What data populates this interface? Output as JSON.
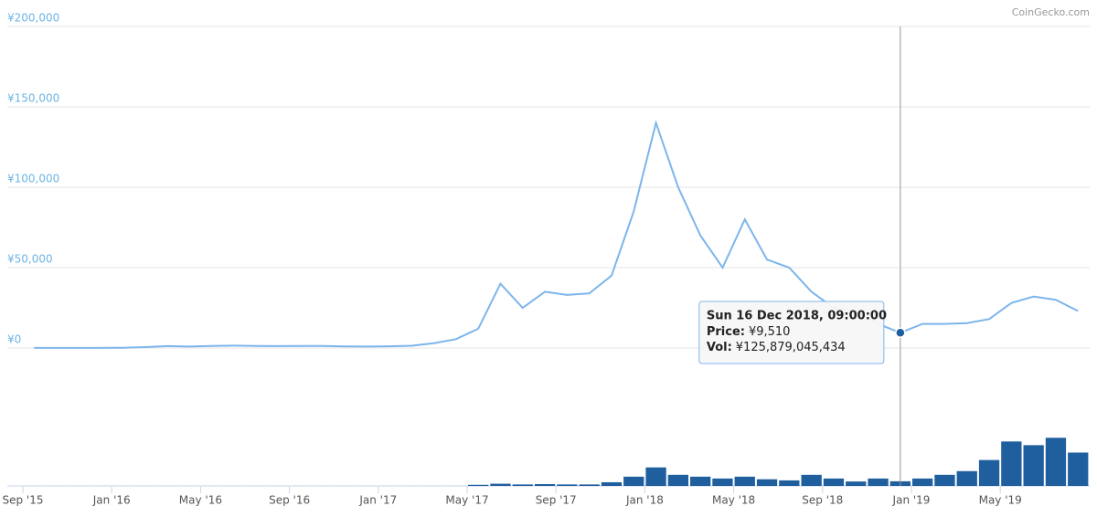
{
  "chart_data": {
    "type": "line",
    "credit": "CoinGecko.com",
    "x": [
      "2015-09",
      "2015-10",
      "2015-11",
      "2015-12",
      "2016-01",
      "2016-02",
      "2016-03",
      "2016-04",
      "2016-05",
      "2016-06",
      "2016-07",
      "2016-08",
      "2016-09",
      "2016-10",
      "2016-11",
      "2016-12",
      "2017-01",
      "2017-02",
      "2017-03",
      "2017-04",
      "2017-05",
      "2017-06",
      "2017-07",
      "2017-08",
      "2017-09",
      "2017-10",
      "2017-11",
      "2017-12",
      "2018-01",
      "2018-02",
      "2018-03",
      "2018-04",
      "2018-05",
      "2018-06",
      "2018-07",
      "2018-08",
      "2018-09",
      "2018-10",
      "2018-11",
      "2018-12",
      "2019-01",
      "2019-02",
      "2019-03",
      "2019-04",
      "2019-05",
      "2019-06",
      "2019-07",
      "2019-08"
    ],
    "series": [
      {
        "color": "#7cb5ec",
        "values": [
          100,
          80,
          100,
          100,
          120,
          600,
          1200,
          900,
          1300,
          1500,
          1300,
          1200,
          1300,
          1300,
          1000,
          900,
          1100,
          1400,
          3000,
          5500,
          12000,
          40000,
          25000,
          35000,
          33000,
          34000,
          45000,
          85000,
          140000,
          100000,
          70000,
          50000,
          80000,
          55000,
          50000,
          35000,
          25000,
          23000,
          15000,
          9510,
          15000,
          15000,
          15500,
          18000,
          28000,
          32000,
          30000,
          23000
        ]
      },
      {
        "color": "#1f5f9e",
        "axis": "y2",
        "values": [
          1000000000.0,
          1000000000.0,
          1000000000.0,
          1000000000.0,
          1000000000.0,
          1000000000.0,
          1000000000.0,
          1000000000.0,
          1000000000.0,
          1000000000.0,
          1000000000.0,
          1000000000.0,
          1000000000.0,
          1000000000.0,
          1000000000.0,
          1000000000.0,
          1000000000.0,
          1000000000.0,
          1000000000.0,
          1000000000.0,
          30000000000.0,
          60000000000.0,
          40000000000.0,
          50000000000.0,
          40000000000.0,
          40000000000.0,
          100000000000.0,
          250000000000.0,
          500000000000.0,
          300000000000.0,
          250000000000.0,
          200000000000.0,
          250000000000.0,
          180000000000.0,
          150000000000.0,
          300000000000.0,
          200000000000.0,
          120000000000.0,
          200000000000.0,
          126000000000.0,
          200000000000.0,
          300000000000.0,
          400000000000.0,
          700000000000.0,
          1200000000000.0,
          1100000000000.0,
          1300000000000.0,
          900000000000.0
        ]
      }
    ],
    "ylim": [
      0,
      200000
    ],
    "yticks": [
      {
        "value": 0,
        "label": "¥0"
      },
      {
        "value": 50000,
        "label": "¥50,000"
      },
      {
        "value": 100000,
        "label": "¥100,000"
      },
      {
        "value": 150000,
        "label": "¥150,000"
      },
      {
        "value": 200000,
        "label": "¥200,000"
      }
    ],
    "y2lim": [
      0,
      3500000000000
    ],
    "xticks": [
      {
        "value": "2015-09",
        "label": "Sep '15"
      },
      {
        "value": "2016-01",
        "label": "Jan '16"
      },
      {
        "value": "2016-05",
        "label": "May '16"
      },
      {
        "value": "2016-09",
        "label": "Sep '16"
      },
      {
        "value": "2017-01",
        "label": "Jan '17"
      },
      {
        "value": "2017-05",
        "label": "May '17"
      },
      {
        "value": "2017-09",
        "label": "Sep '17"
      },
      {
        "value": "2018-01",
        "label": "Jan '18"
      },
      {
        "value": "2018-05",
        "label": "May '18"
      },
      {
        "value": "2018-09",
        "label": "Sep '18"
      },
      {
        "value": "2019-01",
        "label": "Jan '19"
      },
      {
        "value": "2019-05",
        "label": "May '19"
      }
    ],
    "grid": true,
    "tooltip": {
      "x": "2018-12",
      "date": "Sun 16 Dec 2018, 09:00:00",
      "price_name": "Price:",
      "price": 9510,
      "price_label": "¥9,510",
      "vol_name": "Vol:",
      "volume": 125879045434,
      "volume_label": "¥125,879,045,434"
    }
  }
}
